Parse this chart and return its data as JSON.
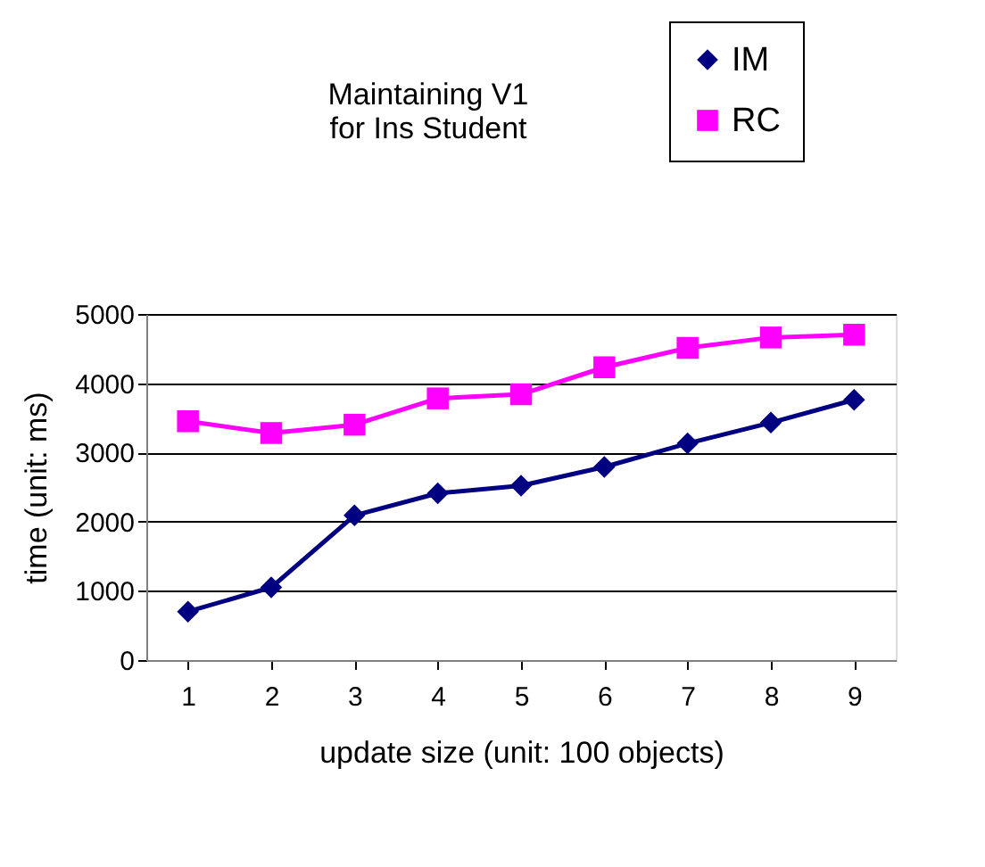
{
  "chart_data": {
    "type": "line",
    "title": "Maintaining V1\nfor Ins Student",
    "xlabel": "update size (unit: 100 objects)",
    "ylabel": "time (unit: ms)",
    "categories": [
      "1",
      "2",
      "3",
      "4",
      "5",
      "6",
      "7",
      "8",
      "9"
    ],
    "series": [
      {
        "name": "IM",
        "color": "#000080",
        "marker": "diamond",
        "values": [
          700,
          1050,
          2090,
          2410,
          2520,
          2790,
          3130,
          3430,
          3760
        ]
      },
      {
        "name": "RC",
        "color": "#ff00ff",
        "marker": "square",
        "values": [
          3450,
          3280,
          3400,
          3780,
          3840,
          4230,
          4510,
          4660,
          4700
        ]
      }
    ],
    "ylim": [
      0,
      5000
    ],
    "yticks": [
      0,
      1000,
      2000,
      3000,
      4000,
      5000
    ],
    "grid": "y",
    "legend": "top right",
    "line_style": "solid"
  }
}
